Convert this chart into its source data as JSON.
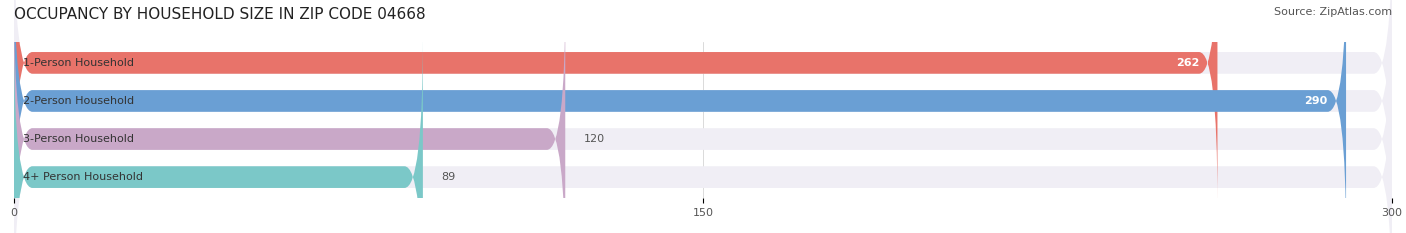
{
  "title": "OCCUPANCY BY HOUSEHOLD SIZE IN ZIP CODE 04668",
  "source": "Source: ZipAtlas.com",
  "categories": [
    "1-Person Household",
    "2-Person Household",
    "3-Person Household",
    "4+ Person Household"
  ],
  "values": [
    262,
    290,
    120,
    89
  ],
  "bar_colors": [
    "#E8736A",
    "#6A9FD4",
    "#C9A8C8",
    "#7BC8C8"
  ],
  "bar_bg_color": "#F0EEF5",
  "xlim": [
    0,
    300
  ],
  "xticks": [
    0,
    150,
    300
  ],
  "title_fontsize": 11,
  "source_fontsize": 8,
  "label_fontsize": 8,
  "value_fontsize": 8,
  "bar_height": 0.55,
  "background_color": "#FFFFFF"
}
